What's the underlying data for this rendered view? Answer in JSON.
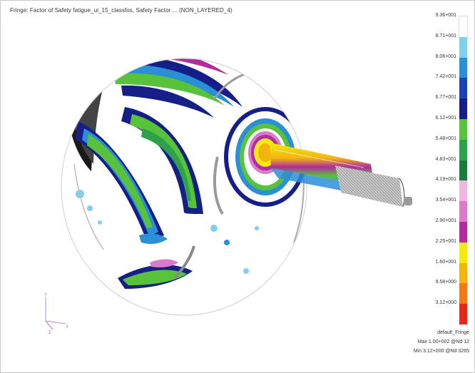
{
  "title": "Fringe: Factor of Safety fatigue_ui_15_classfos, Safety Factor ... (NON_LAYERED_4)",
  "legend": {
    "levels": [
      {
        "label": "9.36+001",
        "color": "#ffffff"
      },
      {
        "label": "8.71+001",
        "color": "#7fd0ee"
      },
      {
        "label": "8.06+001",
        "color": "#2a8fd6"
      },
      {
        "label": "7.42+001",
        "color": "#1a45b0"
      },
      {
        "label": "6.77+001",
        "color": "#161f88"
      },
      {
        "label": "6.12+001",
        "color": "#58c23a"
      },
      {
        "label": "5.48+001",
        "color": "#2ea14b"
      },
      {
        "label": "4.83+001",
        "color": "#1b7a3c"
      },
      {
        "label": "4.19+001",
        "color": "#f0b8e0"
      },
      {
        "label": "3.54+001",
        "color": "#d87cc8"
      },
      {
        "label": "2.90+001",
        "color": "#b02ca0"
      },
      {
        "label": "2.25+001",
        "color": "#f2ea10"
      },
      {
        "label": "1.60+001",
        "color": "#f2b510"
      },
      {
        "label": "9.58+000",
        "color": "#f07a1a"
      },
      {
        "label": "3.12+000",
        "color": "#e32a1a"
      }
    ],
    "end_label": "3.12+000"
  },
  "info": {
    "fringe_name": "default_Fringe",
    "max": "Max 1.00+002 @Nd 12",
    "min": "Min 3.12+000 @Nd 3265"
  },
  "axes": {
    "y_label": "Y",
    "z_label": "Z",
    "x_label": "X"
  }
}
